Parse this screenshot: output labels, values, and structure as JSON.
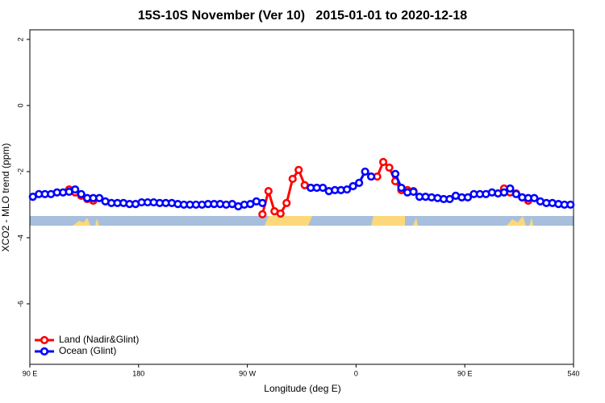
{
  "chart_data": {
    "type": "line",
    "title": "15S-10S November (Ver 10)   2015-01-01 to 2020-12-18",
    "x_label": "Longitude (deg E)",
    "y_label": "XCO2 - MLO trend (ppm)",
    "xlim": [
      90,
      540
    ],
    "xticks": [
      {
        "value": 90,
        "label": "90 E"
      },
      180,
      {
        "value": 270,
        "label": "90 W"
      },
      {
        "value": 360,
        "label": "0"
      },
      {
        "value": 450,
        "label": "90 E"
      },
      540
    ],
    "ylim": [
      -7.83,
      2.29
    ],
    "yticks": [
      2,
      0,
      -2,
      -4,
      -6
    ],
    "legend": "bottom-left",
    "x": [
      92.5,
      97.5,
      102.5,
      107.5,
      112.5,
      117.5,
      122.5,
      127.5,
      132.5,
      137.5,
      142.5,
      147.5,
      152.5,
      157.5,
      162.5,
      167.5,
      172.5,
      177.5,
      182.5,
      187.5,
      192.5,
      197.5,
      202.5,
      207.5,
      212.5,
      217.5,
      222.5,
      227.5,
      232.5,
      237.5,
      242.5,
      247.5,
      252.5,
      257.5,
      262.5,
      267.5,
      272.5,
      277.5,
      282.5,
      287.5,
      292.5,
      297.5,
      302.5,
      307.5,
      312.5,
      317.5,
      322.5,
      327.5,
      332.5,
      337.5,
      342.5,
      347.5,
      352.5,
      357.5,
      362.5,
      367.5,
      372.5,
      377.5,
      382.5,
      387.5,
      392.5,
      397.5,
      402.5,
      407.5,
      412.5,
      417.5,
      422.5,
      427.5,
      432.5,
      437.5,
      442.5,
      447.5,
      452.5,
      457.5,
      462.5,
      467.5,
      472.5,
      477.5,
      482.5,
      487.5,
      492.5,
      497.5,
      502.5,
      507.5,
      512.5,
      517.5,
      522.5,
      527.5,
      532.5,
      537.5
    ],
    "series": [
      {
        "name": "Land (Nadir&Glint)",
        "color": "#ff0000",
        "values": [
          null,
          null,
          null,
          null,
          null,
          null,
          -2.54,
          -2.63,
          -2.73,
          -2.83,
          -2.88,
          null,
          null,
          null,
          null,
          null,
          null,
          null,
          null,
          null,
          null,
          null,
          null,
          null,
          null,
          null,
          null,
          null,
          null,
          null,
          null,
          null,
          null,
          null,
          null,
          null,
          null,
          null,
          -3.29,
          -2.59,
          -3.2,
          -3.27,
          -2.95,
          -2.22,
          -1.95,
          -2.41,
          -2.49,
          null,
          null,
          null,
          null,
          null,
          null,
          null,
          null,
          null,
          -2.15,
          -2.15,
          -1.71,
          -1.88,
          -2.29,
          -2.56,
          -2.56,
          -2.59,
          null,
          null,
          null,
          null,
          null,
          null,
          null,
          null,
          null,
          null,
          null,
          null,
          null,
          null,
          -2.51,
          -2.63,
          -2.66,
          -2.78,
          -2.88,
          null,
          null,
          null,
          null,
          null,
          null,
          null
        ]
      },
      {
        "name": "Ocean (Glint)",
        "color": "#0000ff",
        "values": [
          -2.76,
          -2.68,
          -2.68,
          -2.68,
          -2.63,
          -2.63,
          -2.61,
          -2.54,
          -2.68,
          -2.8,
          -2.8,
          -2.8,
          -2.9,
          -2.95,
          -2.95,
          -2.95,
          -2.98,
          -2.98,
          -2.93,
          -2.93,
          -2.93,
          -2.95,
          -2.95,
          -2.95,
          -2.98,
          -3.0,
          -3.0,
          -3.0,
          -3.0,
          -2.98,
          -2.98,
          -2.98,
          -3.0,
          -2.98,
          -3.05,
          -3.0,
          -2.98,
          -2.9,
          -2.95,
          null,
          null,
          null,
          null,
          null,
          null,
          null,
          -2.49,
          -2.49,
          -2.49,
          -2.59,
          -2.56,
          -2.56,
          -2.54,
          -2.44,
          -2.34,
          -2.0,
          -2.15,
          null,
          null,
          null,
          -2.07,
          -2.49,
          -2.63,
          -2.61,
          -2.76,
          -2.76,
          -2.78,
          -2.8,
          -2.83,
          -2.83,
          -2.73,
          -2.78,
          -2.78,
          -2.68,
          -2.68,
          -2.68,
          -2.63,
          -2.66,
          -2.63,
          -2.51,
          -2.68,
          -2.78,
          -2.8,
          -2.8,
          -2.9,
          -2.95,
          -2.95,
          -2.98,
          -3.0,
          -3.0
        ]
      }
    ]
  }
}
